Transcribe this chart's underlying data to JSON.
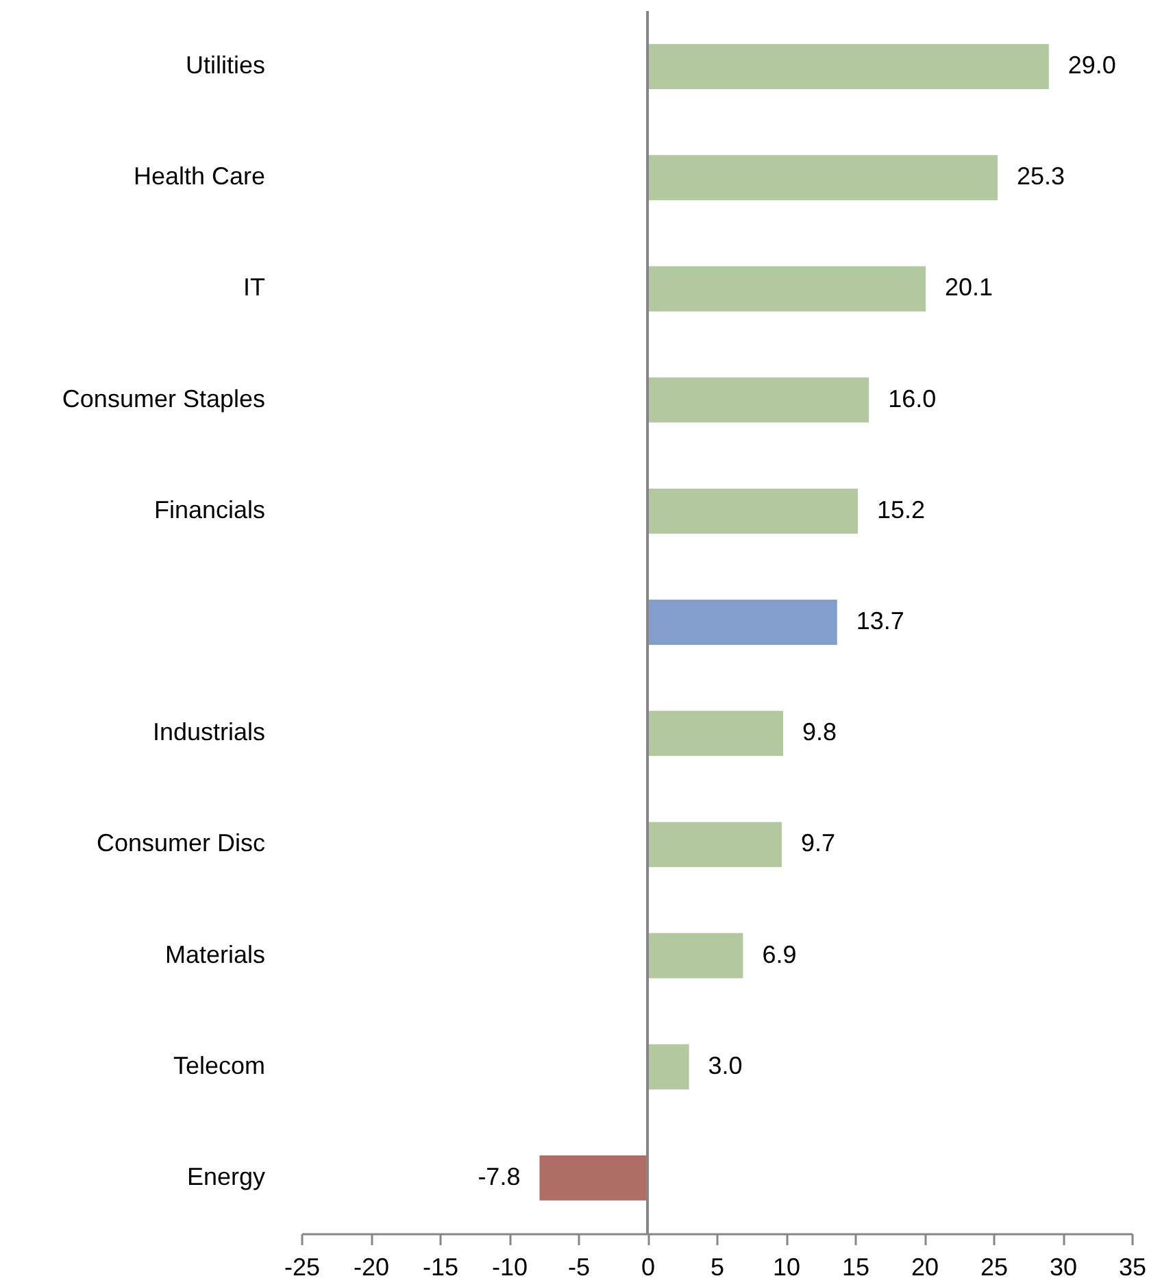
{
  "chart_data": {
    "type": "bar",
    "orientation": "horizontal",
    "categories": [
      "Utilities",
      "Health Care",
      "IT",
      "Consumer Staples",
      "Financials",
      null,
      "Industrials",
      "Consumer Disc",
      "Materials",
      "Telecom",
      "Energy"
    ],
    "values": [
      29.0,
      25.3,
      20.1,
      16.0,
      15.2,
      13.7,
      9.8,
      9.7,
      6.9,
      3.0,
      -7.8
    ],
    "colors": [
      "#b2c9a0",
      "#b2c9a0",
      "#b2c9a0",
      "#b2c9a0",
      "#b2c9a0",
      "#829fcb",
      "#b2c9a0",
      "#b2c9a0",
      "#b2c9a0",
      "#b2c9a0",
      "#ae6e66"
    ],
    "value_labels": [
      "29.0",
      "25.3",
      "20.1",
      "16.0",
      "15.2",
      "13.7",
      "9.8",
      "9.7",
      "6.9",
      "3.0",
      "-7.8"
    ],
    "xlim": [
      -25,
      35
    ],
    "xticks": [
      -25,
      -20,
      -15,
      -10,
      -5,
      0,
      5,
      10,
      15,
      20,
      25,
      30,
      35
    ],
    "ref_lines": [
      {
        "axis": "x",
        "value": 0,
        "color": "#868686"
      }
    ],
    "grid": false
  }
}
